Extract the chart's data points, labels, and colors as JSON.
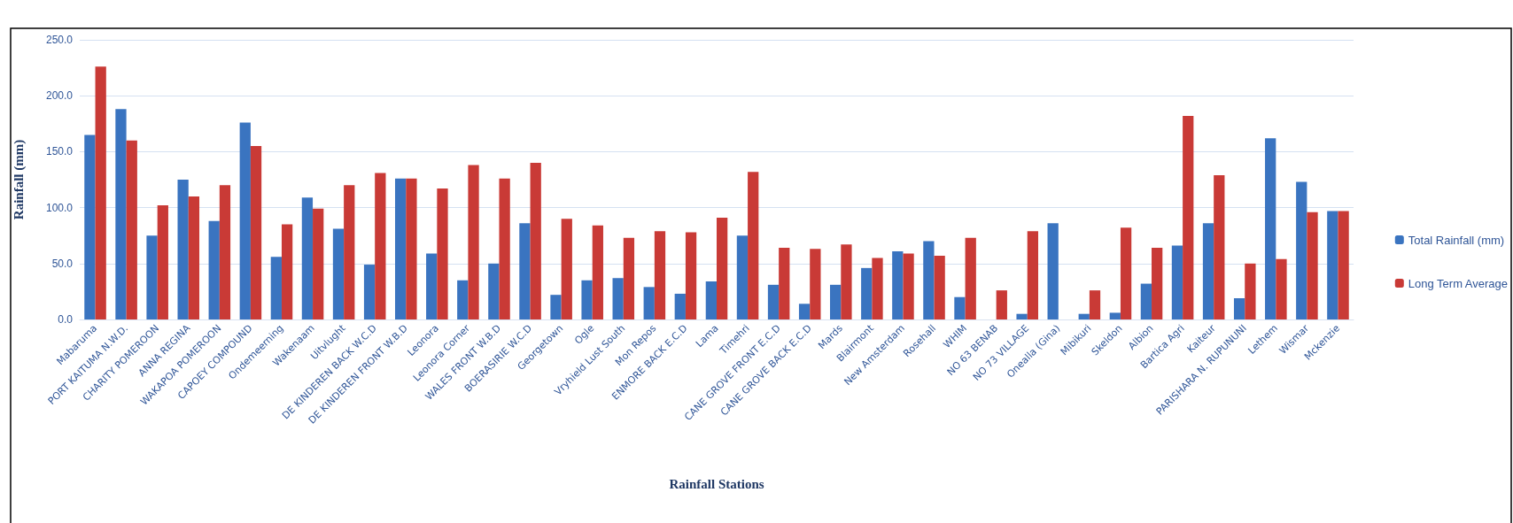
{
  "chart_data": {
    "type": "bar",
    "xlabel": "Rainfall Stations",
    "ylabel": "Rainfall (mm)",
    "categories": [
      "Mabaruma",
      "PORT KAITUMA N.W.D.",
      "CHARITY POMEROON",
      "ANNA REGINA",
      "WAKAPOA POMEROON",
      "CAPOEY COMPOUND",
      "Ondemeerning",
      "Wakenaam",
      "Uitvlught",
      "DE KINDEREN BACK W.C.D",
      "DE KINDEREN FRONT W.B.D",
      "Leonora",
      "Leonora Corner",
      "WALES FRONT W.B.D",
      "BOERASIRIE W.C.D",
      "Georgetown",
      "Ogle",
      "Vryhield Lust South",
      "Mon Repos",
      "ENMORE BACK E.C.D",
      "Lama",
      "Timehri",
      "CANE GROVE FRONT E.C.D",
      "CANE GROVE BACK E.C.D",
      "Mards",
      "Blairmont",
      "New Amsterdam",
      "Rosehall",
      "WHIM",
      "NO 63 BENAB",
      "NO 73 VILLAGE",
      "Onealla (Gina)",
      "Mibikuri",
      "Skeldon",
      "Albion",
      "Bartica Agri",
      "Kaiteur",
      "PARISHARA N. RUPUNUNI",
      "Lethem",
      "Wismar",
      "Mckenzie"
    ],
    "series": [
      {
        "name": "Total Rainfall (mm)",
        "color": "#3a74c0",
        "values": [
          165,
          188,
          75,
          125,
          88,
          176,
          56,
          109,
          81,
          49,
          126,
          59,
          35,
          50,
          86,
          22,
          35,
          37,
          29,
          23,
          34,
          75,
          31,
          14,
          31,
          46,
          61,
          70,
          20,
          null,
          5,
          86,
          5,
          6,
          32,
          66,
          86,
          19,
          162,
          123,
          97
        ]
      },
      {
        "name": "Long Term Average",
        "color": "#c93a36",
        "values": [
          226,
          160,
          102,
          110,
          120,
          155,
          85,
          99,
          120,
          131,
          126,
          117,
          138,
          126,
          140,
          90,
          84,
          73,
          79,
          78,
          91,
          132,
          64,
          63,
          67,
          55,
          59,
          57,
          73,
          26,
          79,
          null,
          26,
          82,
          64,
          182,
          129,
          50,
          54,
          96,
          97
        ]
      }
    ],
    "ylim": [
      0,
      250
    ],
    "yticks": [
      {
        "value": 0,
        "label": "0.0"
      },
      {
        "value": 50,
        "label": "50.0"
      },
      {
        "value": 100,
        "label": "100.0"
      },
      {
        "value": 150,
        "label": "150.0"
      },
      {
        "value": 200,
        "label": "200.0"
      },
      {
        "value": 250,
        "label": "250.0"
      }
    ],
    "grid": "y",
    "legend": "right"
  }
}
